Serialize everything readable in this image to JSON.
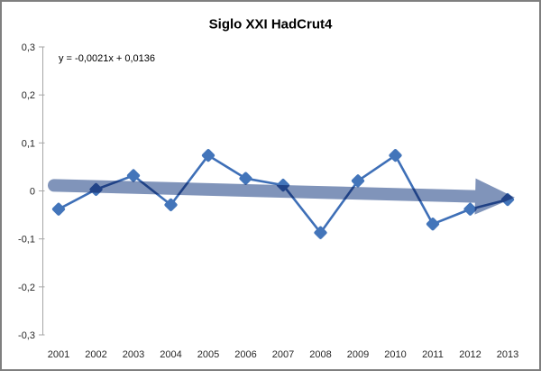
{
  "window": {
    "background": "#FFFFFF",
    "border_color": "#7F7F7F"
  },
  "chart_data": {
    "type": "line",
    "title": "Siglo XXI HadCrut4",
    "categories": [
      "2001",
      "2002",
      "2003",
      "2004",
      "2005",
      "2006",
      "2007",
      "2008",
      "2009",
      "2010",
      "2011",
      "2012",
      "2013"
    ],
    "series": [
      {
        "name": "HadCrut4",
        "values": [
          -0.038,
          0.003,
          0.032,
          -0.029,
          0.074,
          0.026,
          0.012,
          -0.087,
          0.021,
          0.074,
          -0.069,
          -0.038,
          -0.018
        ]
      }
    ],
    "ylim": [
      -0.3,
      0.3
    ],
    "ytick_step": 0.1,
    "ytick_labels": [
      "0,3",
      "0,2",
      "0,1",
      "0",
      "-0,1",
      "-0,2",
      "-0,3"
    ],
    "xlabel": "",
    "ylabel": "",
    "grid": false,
    "legend": "none",
    "marker_shape": "diamond",
    "trendline": {
      "label": "y = -0,0021x + 0,0136",
      "slope": -0.0021,
      "intercept": 0.0136,
      "style": "block-arrow"
    },
    "colors": {
      "line": "#3E6FB7",
      "marker": "#4375BA",
      "trend_arrow": "#8094BA",
      "title_text": "#3F3F3F",
      "axis": "#A6A6A6",
      "label_text": "#262626",
      "equation_text": "#1A1A1A"
    }
  }
}
